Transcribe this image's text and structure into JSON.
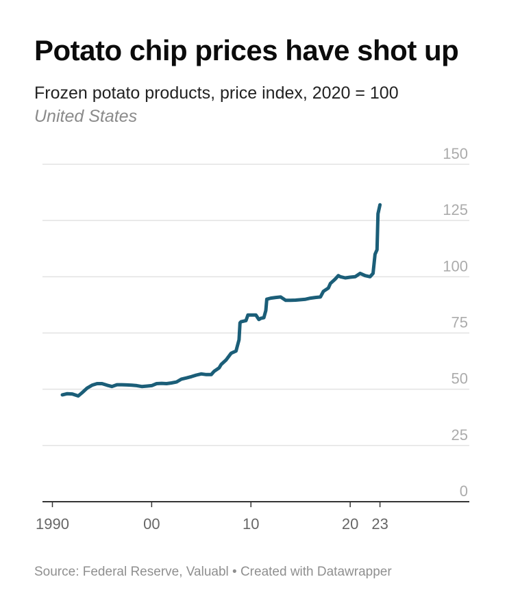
{
  "title": "Potato chip prices have shot up",
  "subtitle": "Frozen potato products, price index, 2020 = 100",
  "note": "United States",
  "source": "Source: Federal Reserve, Valuabl • Created with Datawrapper",
  "colors": {
    "line": "#1b5e78",
    "grid": "#e2e2e2",
    "axis": "#333333"
  },
  "chart_data": {
    "type": "line",
    "title": "Potato chip prices have shot up",
    "ylabel": "",
    "xlabel": "",
    "ylim": [
      0,
      150
    ],
    "xlim": [
      1989,
      2032
    ],
    "grid": true,
    "y_ticks": [
      0,
      25,
      50,
      75,
      100,
      125,
      150
    ],
    "y_tick_labels": [
      "0",
      "25",
      "50",
      "75",
      "100",
      "125",
      "150"
    ],
    "x_ticks": [
      1990,
      2000,
      2010,
      2020,
      2023
    ],
    "x_tick_labels": [
      "1990",
      "00",
      "10",
      "20",
      "23"
    ],
    "series": [
      {
        "values": [
          [
            1991.0,
            47.5
          ],
          [
            1991.5,
            48.0
          ],
          [
            1992.0,
            47.9
          ],
          [
            1992.6,
            47.0
          ],
          [
            1993.0,
            48.5
          ],
          [
            1993.5,
            50.5
          ],
          [
            1994.0,
            51.8
          ],
          [
            1994.5,
            52.5
          ],
          [
            1995.0,
            52.5
          ],
          [
            1995.5,
            51.8
          ],
          [
            1996.0,
            51.2
          ],
          [
            1996.5,
            52.0
          ],
          [
            1997.0,
            52.0
          ],
          [
            1997.5,
            51.9
          ],
          [
            1998.0,
            51.8
          ],
          [
            1998.5,
            51.6
          ],
          [
            1999.0,
            51.2
          ],
          [
            1999.5,
            51.4
          ],
          [
            2000.0,
            51.6
          ],
          [
            2000.5,
            52.5
          ],
          [
            2001.0,
            52.6
          ],
          [
            2001.5,
            52.5
          ],
          [
            2002.0,
            52.8
          ],
          [
            2002.5,
            53.2
          ],
          [
            2003.0,
            54.5
          ],
          [
            2003.5,
            55.0
          ],
          [
            2004.0,
            55.6
          ],
          [
            2004.5,
            56.3
          ],
          [
            2005.0,
            56.8
          ],
          [
            2005.5,
            56.5
          ],
          [
            2006.0,
            56.5
          ],
          [
            2006.3,
            58.0
          ],
          [
            2006.8,
            59.5
          ],
          [
            2007.0,
            61.0
          ],
          [
            2007.5,
            63.0
          ],
          [
            2008.0,
            66.0
          ],
          [
            2008.5,
            67.0
          ],
          [
            2008.8,
            72.0
          ],
          [
            2008.9,
            79.5
          ],
          [
            2009.0,
            80.0
          ],
          [
            2009.5,
            80.5
          ],
          [
            2009.7,
            83.0
          ],
          [
            2010.5,
            83.0
          ],
          [
            2010.8,
            81.0
          ],
          [
            2011.0,
            81.5
          ],
          [
            2011.3,
            81.8
          ],
          [
            2011.5,
            85.0
          ],
          [
            2011.6,
            90.0
          ],
          [
            2012.0,
            90.5
          ],
          [
            2012.5,
            90.8
          ],
          [
            2013.0,
            91.0
          ],
          [
            2013.5,
            89.5
          ],
          [
            2014.0,
            89.5
          ],
          [
            2014.5,
            89.6
          ],
          [
            2015.0,
            89.8
          ],
          [
            2015.5,
            90.0
          ],
          [
            2016.0,
            90.5
          ],
          [
            2016.5,
            90.8
          ],
          [
            2017.0,
            91.0
          ],
          [
            2017.3,
            93.5
          ],
          [
            2017.8,
            95.0
          ],
          [
            2018.0,
            97.0
          ],
          [
            2018.5,
            99.0
          ],
          [
            2018.8,
            100.5
          ],
          [
            2019.0,
            100.0
          ],
          [
            2019.5,
            99.5
          ],
          [
            2020.0,
            99.8
          ],
          [
            2020.5,
            100.0
          ],
          [
            2021.0,
            101.5
          ],
          [
            2021.5,
            100.5
          ],
          [
            2022.0,
            100.0
          ],
          [
            2022.3,
            101.5
          ],
          [
            2022.5,
            110.0
          ],
          [
            2022.7,
            112.0
          ],
          [
            2022.8,
            128.0
          ],
          [
            2023.0,
            132.0
          ]
        ]
      }
    ]
  }
}
